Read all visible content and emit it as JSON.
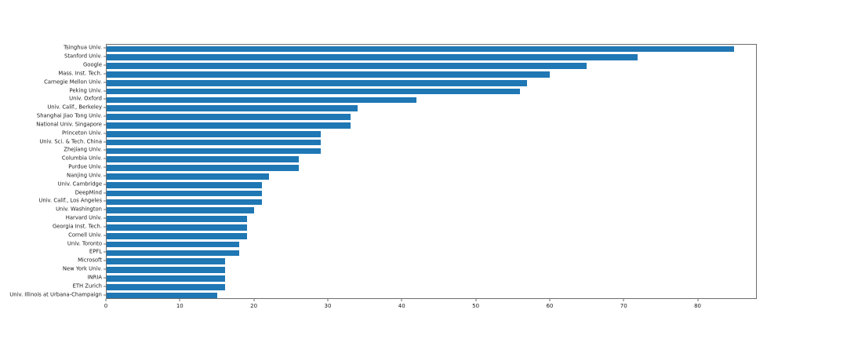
{
  "chart_data": {
    "type": "bar",
    "orientation": "horizontal",
    "title": "",
    "xlabel": "",
    "ylabel": "",
    "categories": [
      "Tsinghua Univ.",
      "Stanford Univ.",
      "Google",
      "Mass. Inst. Tech.",
      "Carnegie Mellon Univ.",
      "Peking Univ.",
      "Univ. Oxford",
      "Univ. Calif., Berkeley",
      "Shanghai Jiao Tong Univ.",
      "National Univ. Singapore",
      "Princeton Univ.",
      "Univ. Sci. & Tech. China",
      "Zhejiang Univ.",
      "Columbia Univ.",
      "Purdue Univ.",
      "Nanjing Univ.",
      "Univ. Cambridge",
      "DeepMind",
      "Univ. Calif., Los Angeles",
      "Univ. Washington",
      "Harvard Univ.",
      "Georgia Inst. Tech.",
      "Cornell Univ.",
      "Univ. Toronto",
      "EPFL",
      "Microsoft",
      "New York Univ.",
      "INRIA",
      "ETH Zurich",
      "Univ. Illinois at Urbana-Champaign"
    ],
    "values": [
      85,
      72,
      65,
      60,
      57,
      56,
      42,
      34,
      33,
      33,
      29,
      29,
      29,
      26,
      26,
      22,
      21,
      21,
      21,
      20,
      19,
      19,
      19,
      18,
      18,
      16,
      16,
      16,
      16,
      15
    ],
    "xlim": [
      0,
      88
    ],
    "xticks": [
      0,
      10,
      20,
      30,
      40,
      50,
      60,
      70,
      80
    ],
    "grid": false,
    "legend_position": "none",
    "bar_color": "#1f77b4"
  }
}
